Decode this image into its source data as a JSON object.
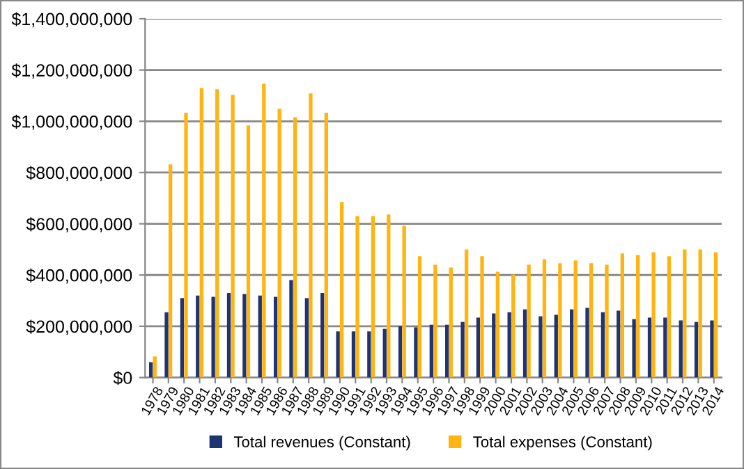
{
  "chart_data": {
    "type": "bar",
    "categories": [
      "1978",
      "1979",
      "1980",
      "1981",
      "1982",
      "1983",
      "1984",
      "1985",
      "1986",
      "1987",
      "1988",
      "1989",
      "1990",
      "1991",
      "1992",
      "1993",
      "1994",
      "1995",
      "1996",
      "1997",
      "1998",
      "1999",
      "2000",
      "2001",
      "2002",
      "2003",
      "2004",
      "2005",
      "2006",
      "2007",
      "2008",
      "2009",
      "2010",
      "2011",
      "2012",
      "2013",
      "2014"
    ],
    "series": [
      {
        "name": "Total revenues (Constant)",
        "color": "#1f3473",
        "values": [
          60000000,
          255000000,
          310000000,
          320000000,
          315000000,
          330000000,
          326000000,
          320000000,
          315000000,
          380000000,
          310000000,
          330000000,
          180000000,
          180000000,
          180000000,
          190000000,
          200000000,
          196000000,
          206000000,
          206000000,
          217000000,
          234000000,
          250000000,
          255000000,
          266000000,
          239000000,
          245000000,
          266000000,
          272000000,
          255000000,
          261000000,
          228000000,
          234000000,
          234000000,
          223000000,
          217000000,
          223000000
        ]
      },
      {
        "name": "Total expenses (Constant)",
        "color": "#ffb511",
        "values": [
          82000000,
          832000000,
          1033000000,
          1130000000,
          1125000000,
          1103000000,
          984000000,
          1147000000,
          1049000000,
          1016000000,
          1109000000,
          1033000000,
          685000000,
          630000000,
          630000000,
          636000000,
          592000000,
          473000000,
          440000000,
          429000000,
          500000000,
          473000000,
          413000000,
          402000000,
          440000000,
          462000000,
          446000000,
          457000000,
          446000000,
          440000000,
          484000000,
          478000000,
          489000000,
          473000000,
          500000000,
          500000000,
          489000000
        ]
      }
    ],
    "ylim": [
      0,
      1400000000
    ],
    "yticks": [
      {
        "value": 0,
        "label": "$0"
      },
      {
        "value": 200000000,
        "label": "$200,000,000"
      },
      {
        "value": 400000000,
        "label": "$400,000,000"
      },
      {
        "value": 600000000,
        "label": "$600,000,000"
      },
      {
        "value": 800000000,
        "label": "$800,000,000"
      },
      {
        "value": 1000000000,
        "label": "$1,000,000,000"
      },
      {
        "value": 1200000000,
        "label": "$1,200,000,000"
      },
      {
        "value": 1400000000,
        "label": "$1,400,000,000"
      }
    ],
    "grid": "y",
    "legend": "bottom"
  }
}
